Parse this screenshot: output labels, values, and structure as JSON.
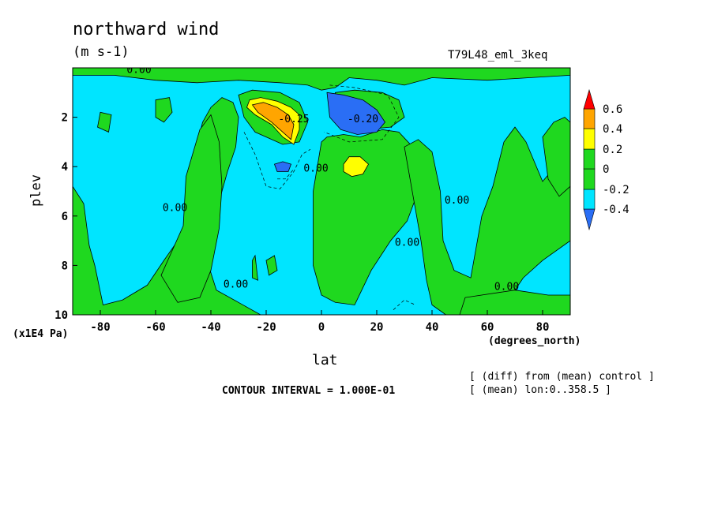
{
  "header": {
    "title": "northward wind",
    "units": "(m s-1)",
    "run_label": "T79L48_eml_3keq"
  },
  "footer": {
    "x_units": "(degrees_north)",
    "y_units": "(x1E4 Pa)",
    "contour_interval": "CONTOUR INTERVAL = 1.000E-01",
    "note_1": "[ (diff) from (mean) control ]",
    "note_2": "[ (mean) lon:0..358.5 ]"
  },
  "chart_data": {
    "type": "heatmap",
    "title": "northward wind",
    "subtitle": "(m s-1)",
    "xlabel": "lat",
    "ylabel": "plev",
    "x_units": "(degrees_north)",
    "y_units": "(x1E4 Pa)",
    "xlim": [
      -90,
      90
    ],
    "ylim": [
      10,
      0
    ],
    "x_ticks": [
      -80,
      -60,
      -40,
      -20,
      0,
      20,
      40,
      60,
      80
    ],
    "y_ticks": [
      2,
      4,
      6,
      8,
      10
    ],
    "colorbar": {
      "levels": [
        -0.4,
        -0.2,
        0,
        0.2,
        0.4,
        0.6
      ],
      "labels": [
        "-0.4",
        "-0.2",
        "0",
        "0.2",
        "0.4",
        "0.6"
      ],
      "colors": [
        "#1a6bff",
        "#00c8ff",
        "#00e0ff",
        "#22dd22",
        "#ffff00",
        "#ffa000",
        "#ff0000"
      ]
    },
    "colors": {
      "neg_strong": "#2a6ef5",
      "neg_weak": "#00e5ff",
      "pos_weak": "#1fd81f",
      "pos_mid": "#ffff00",
      "pos_strong": "#ffa500",
      "max": "#ff0000"
    },
    "features": [
      {
        "name": "positive maximum",
        "lat": -16,
        "plev": 2.3,
        "value": 0.5
      },
      {
        "name": "negative minimum",
        "lat": 12,
        "plev": 2.0,
        "value": -0.45
      },
      {
        "name": "positive cell",
        "lat": 14,
        "plev": 4.0,
        "value": 0.3
      },
      {
        "name": "negative cell",
        "lat": -14,
        "plev": 4.0,
        "value": -0.3
      }
    ],
    "contour_labels": [
      {
        "text": "0.00",
        "lat": -66,
        "plev": 0.2
      },
      {
        "text": "0.00",
        "lat": -53,
        "plev": 5.8
      },
      {
        "text": "0.00",
        "lat": -31,
        "plev": 8.9
      },
      {
        "text": "0.00",
        "lat": -2,
        "plev": 4.2
      },
      {
        "text": "0.00",
        "lat": 31,
        "plev": 7.2
      },
      {
        "text": "0.00",
        "lat": 49,
        "plev": 5.5
      },
      {
        "text": "0.00",
        "lat": 67,
        "plev": 9.0
      },
      {
        "text": "-0.25",
        "lat": -10,
        "plev": 2.2
      },
      {
        "text": "-0.20",
        "lat": 15,
        "plev": 2.2
      }
    ],
    "contour_interval": 0.1,
    "grid": false
  }
}
